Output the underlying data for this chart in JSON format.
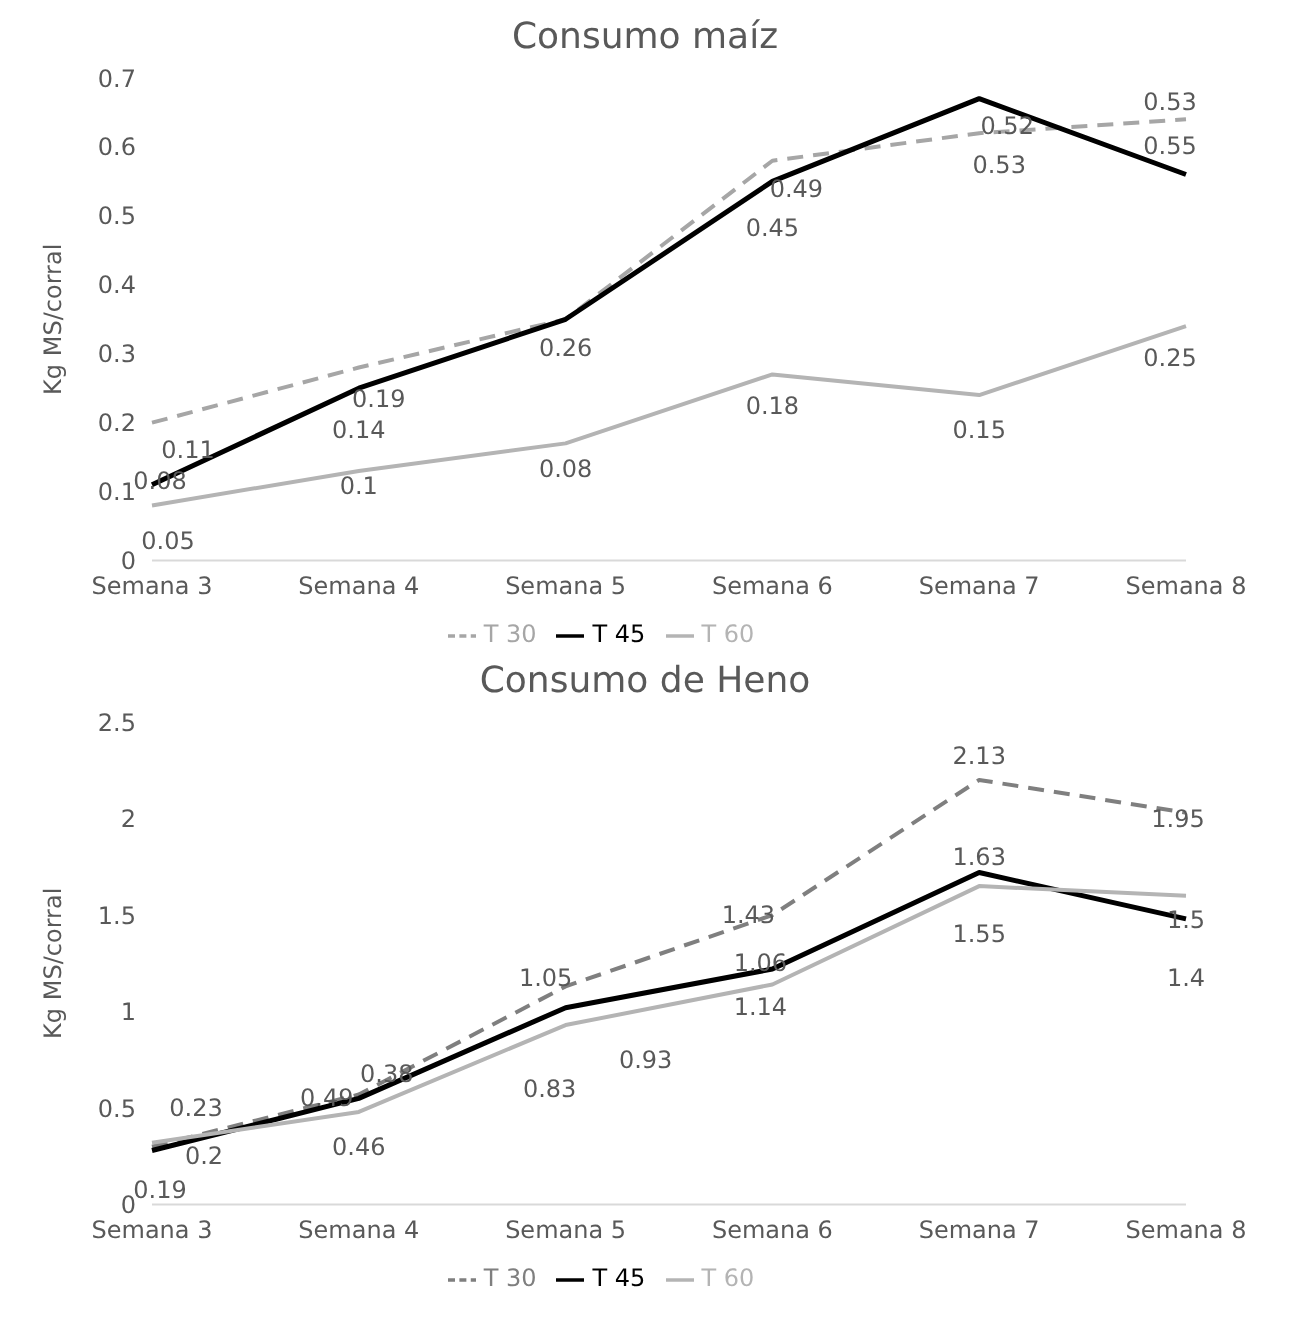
{
  "chart_data": [
    {
      "type": "line",
      "title": "Consumo maíz",
      "ylabel": "Kg MS/corral",
      "categories": [
        "Semana 3",
        "Semana 4",
        "Semana 5",
        "Semana 6",
        "Semana 7",
        "Semana 8"
      ],
      "ylim": [
        0,
        0.7
      ],
      "yticks": [
        0,
        0.1,
        0.2,
        0.3,
        0.4,
        0.5,
        0.6,
        0.7
      ],
      "grid": false,
      "legend": "bottom",
      "marker": "none",
      "series": [
        {
          "name": "T 30",
          "color": "#a6a6a6",
          "line_style": "dashed",
          "values": [
            0.2,
            0.28,
            0.35,
            0.58,
            0.62,
            0.64
          ]
        },
        {
          "name": "T 45",
          "color": "#000000",
          "line_style": "solid",
          "values": [
            0.11,
            0.25,
            0.35,
            0.55,
            0.67,
            0.56
          ]
        },
        {
          "name": "T 60",
          "color": "#b4b4b4",
          "line_style": "solid",
          "values": [
            0.08,
            0.13,
            0.17,
            0.27,
            0.24,
            0.34
          ]
        }
      ],
      "annotations": [
        "0.11",
        "0.08",
        "0.05",
        "0.19",
        "0.14",
        "0.1",
        "0.26",
        "0.08",
        "0.49",
        "0.45",
        "0.18",
        "0.52",
        "0.53",
        "0.15",
        "0.53",
        "0.55",
        "0.25"
      ]
    },
    {
      "type": "line",
      "title": "Consumo de Heno",
      "ylabel": "Kg MS/corral",
      "categories": [
        "Semana 3",
        "Semana 4",
        "Semana 5",
        "Semana 6",
        "Semana 7",
        "Semana 8"
      ],
      "ylim": [
        0,
        2.5
      ],
      "yticks": [
        0,
        0.5,
        1,
        1.5,
        2,
        2.5
      ],
      "grid": false,
      "legend": "bottom",
      "marker": "none",
      "series": [
        {
          "name": "T 30",
          "color": "#7f7f7f",
          "line_style": "dashed",
          "values": [
            0.3,
            0.57,
            1.13,
            1.5,
            2.2,
            2.03
          ]
        },
        {
          "name": "T 45",
          "color": "#000000",
          "line_style": "solid",
          "values": [
            0.28,
            0.55,
            1.02,
            1.22,
            1.72,
            1.48
          ]
        },
        {
          "name": "T 60",
          "color": "#b4b4b4",
          "line_style": "solid",
          "values": [
            0.32,
            0.48,
            0.93,
            1.14,
            1.65,
            1.6
          ]
        }
      ],
      "annotations": [
        "0.23",
        "0.2",
        "0.19",
        "0.49",
        "0.38",
        "0.46",
        "1.05",
        "0.93",
        "0.83",
        "1.43",
        "1.06",
        "1.14",
        "2.13",
        "1.63",
        "1.55",
        "1.95",
        "1.5",
        "1.4"
      ]
    }
  ]
}
